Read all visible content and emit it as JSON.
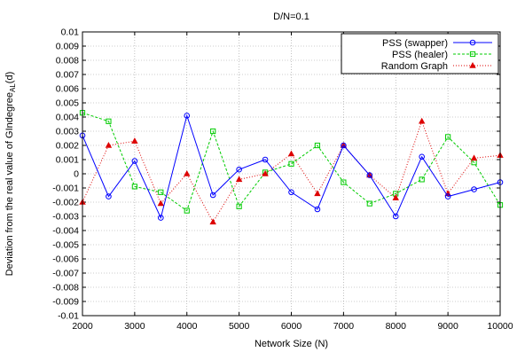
{
  "chart_data": {
    "type": "line",
    "title": "D/N=0.1",
    "xlabel": "Network Size (N)",
    "ylabel": "Deviation from the real value of GIndegree",
    "ylabel_sub": "AL",
    "ylabel_suffix": "(d)",
    "xlim": [
      2000,
      10000
    ],
    "ylim": [
      -0.01,
      0.01
    ],
    "x_ticks": [
      2000,
      3000,
      4000,
      5000,
      6000,
      7000,
      8000,
      9000,
      10000
    ],
    "y_ticks": [
      -0.01,
      -0.009,
      -0.008,
      -0.007,
      -0.006,
      -0.005,
      -0.004,
      -0.003,
      -0.002,
      -0.001,
      0,
      0.001,
      0.002,
      0.003,
      0.004,
      0.005,
      0.006,
      0.007,
      0.008,
      0.009,
      0.01
    ],
    "grid": true,
    "legend_position": "top-right",
    "series": [
      {
        "name": "PSS (swapper)",
        "color": "#0000ff",
        "line_style": "solid",
        "marker": "circle",
        "points": [
          [
            2000,
            0.0027
          ],
          [
            2500,
            -0.0016
          ],
          [
            3000,
            0.0009
          ],
          [
            3500,
            -0.0031
          ],
          [
            4000,
            0.0041
          ],
          [
            4500,
            -0.0015
          ],
          [
            5000,
            0.0003
          ],
          [
            5500,
            0.001
          ],
          [
            6000,
            -0.0013
          ],
          [
            6500,
            -0.0025
          ],
          [
            7000,
            0.002
          ],
          [
            7500,
            -0.0001
          ],
          [
            8000,
            -0.003
          ],
          [
            8500,
            0.0012
          ],
          [
            9000,
            -0.0016
          ],
          [
            9500,
            -0.0011
          ],
          [
            10000,
            -0.0006
          ]
        ]
      },
      {
        "name": "PSS (healer)",
        "color": "#00cc00",
        "line_style": "dashed",
        "marker": "square",
        "points": [
          [
            2000,
            0.0043
          ],
          [
            2500,
            0.0037
          ],
          [
            3000,
            -0.0009
          ],
          [
            3500,
            -0.0013
          ],
          [
            4000,
            -0.0026
          ],
          [
            4500,
            0.003
          ],
          [
            5000,
            -0.0023
          ],
          [
            5500,
            0.0001
          ],
          [
            6000,
            0.0007
          ],
          [
            6500,
            0.002
          ],
          [
            7000,
            -0.0006
          ],
          [
            7500,
            -0.0021
          ],
          [
            8000,
            -0.0014
          ],
          [
            8500,
            -0.0004
          ],
          [
            9000,
            0.0026
          ],
          [
            9500,
            0.0008
          ],
          [
            10000,
            -0.0022
          ]
        ]
      },
      {
        "name": "Random Graph",
        "color": "#dd0000",
        "line_style": "dotted",
        "marker": "triangle",
        "points": [
          [
            2000,
            -0.002
          ],
          [
            2500,
            0.002
          ],
          [
            3000,
            0.0023
          ],
          [
            3500,
            -0.0021
          ],
          [
            4000,
            0.0
          ],
          [
            4500,
            -0.0034
          ],
          [
            5000,
            -0.0004
          ],
          [
            5500,
            0.0
          ],
          [
            6000,
            0.0014
          ],
          [
            6500,
            -0.0014
          ],
          [
            7000,
            0.002
          ],
          [
            7500,
            -0.0001
          ],
          [
            8000,
            -0.0017
          ],
          [
            8500,
            0.0037
          ],
          [
            9000,
            -0.0014
          ],
          [
            9500,
            0.0011
          ],
          [
            10000,
            0.0013
          ]
        ]
      }
    ]
  }
}
